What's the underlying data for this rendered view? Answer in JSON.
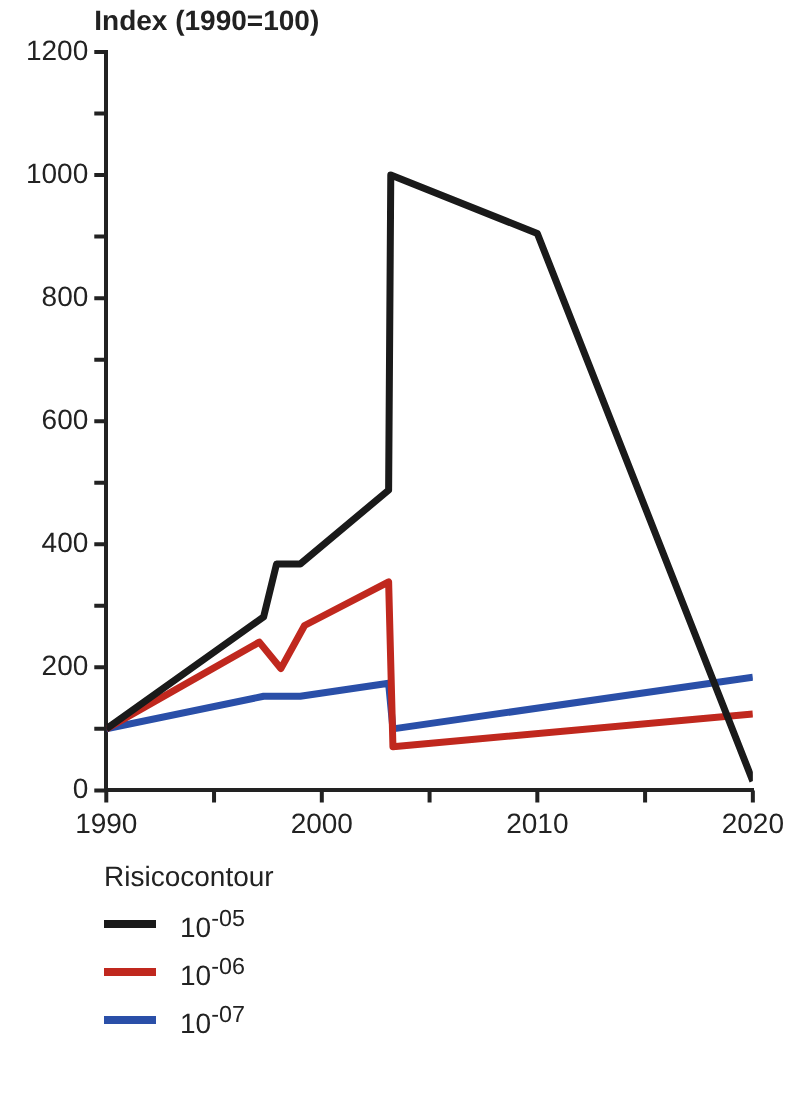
{
  "chart_data": {
    "type": "line",
    "ylabel": "Index (1990=100)",
    "legend_title": "Risicocontour",
    "legend": "bottom left",
    "grid": false,
    "marker": "none",
    "line_style": "solid",
    "xlim": [
      1990,
      2020
    ],
    "xticks": [
      1990,
      {
        "value": 1995,
        "label": null
      },
      2000,
      {
        "value": 2005,
        "label": null
      },
      2010,
      {
        "value": 2015,
        "label": null
      },
      2020
    ],
    "ylim": [
      0,
      1200
    ],
    "yticks": [
      0,
      {
        "value": 100,
        "label": null
      },
      200,
      {
        "value": 300,
        "label": null
      },
      400,
      {
        "value": 500,
        "label": null
      },
      600,
      {
        "value": 700,
        "label": null
      },
      800,
      {
        "value": 900,
        "label": null
      },
      1000,
      {
        "value": 1100,
        "label": null
      },
      1200
    ],
    "series": [
      {
        "name": "10$^{-05}$",
        "color": "#1a1a1a",
        "x": [
          1990,
          1997.3,
          1997.9,
          1999,
          2003.1,
          2003.2,
          2010,
          2020
        ],
        "values": [
          100,
          282,
          368,
          368,
          488,
          1000,
          905,
          15
        ]
      },
      {
        "name": "10$^{-06}$",
        "color": "#c0281e",
        "x": [
          1990,
          1997.1,
          1998.1,
          1999.2,
          2003.1,
          2003.3,
          2020
        ],
        "values": [
          100,
          241,
          198,
          268,
          339,
          71,
          124
        ]
      },
      {
        "name": "10$^{-07}$",
        "color": "#2a4fa8",
        "x": [
          1990,
          1997.3,
          1999,
          2003.1,
          2003.3,
          2020
        ],
        "values": [
          100,
          153,
          153,
          174,
          100,
          184
        ]
      }
    ]
  }
}
